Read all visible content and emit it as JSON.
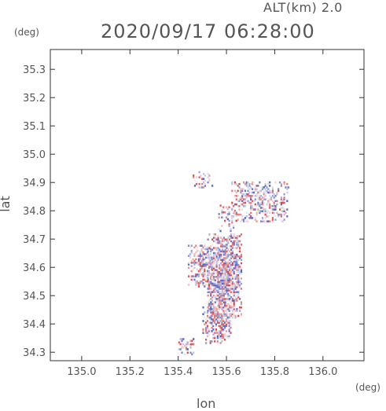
{
  "header": {
    "altitude_label": "ALT(km)  2.0",
    "timestamp": "2020/09/17 06:28:00"
  },
  "axes": {
    "y_unit": "(deg)",
    "x_unit": "(deg)",
    "x_label": "lon",
    "y_label": "lat"
  },
  "chart_data": {
    "type": "heatmap",
    "title": "2020/09/17 06:28:00",
    "subtitle": "ALT(km)  2.0",
    "xlabel": "lon",
    "ylabel": "lat",
    "x_unit": "(deg)",
    "y_unit": "(deg)",
    "xlim": [
      134.87,
      136.17
    ],
    "ylim": [
      34.27,
      35.37
    ],
    "x_ticks": [
      135.0,
      135.2,
      135.4,
      135.6,
      135.8,
      136.0
    ],
    "x_tick_labels": [
      "135.0",
      "135.2",
      "135.4",
      "135.6",
      "135.8",
      "136.0"
    ],
    "y_ticks": [
      34.3,
      34.4,
      34.5,
      34.6,
      34.7,
      34.8,
      34.9,
      35.0,
      35.1,
      35.2,
      35.3
    ],
    "y_tick_labels": [
      "34.3",
      "34.4",
      "34.5",
      "34.6",
      "34.7",
      "34.8",
      "34.9",
      "35.0",
      "35.1",
      "35.2",
      "35.3"
    ],
    "grid": false,
    "colormap": {
      "negative": "#3b4cc0",
      "neutral": "#f2f2f2",
      "positive": "#d62f2f"
    },
    "clusters": [
      {
        "lon": [
          135.52,
          135.66
        ],
        "lat": [
          34.42,
          34.72
        ],
        "density": 0.8
      },
      {
        "lon": [
          135.5,
          135.62
        ],
        "lat": [
          34.33,
          34.47
        ],
        "density": 0.55
      },
      {
        "lon": [
          135.44,
          135.54
        ],
        "lat": [
          34.53,
          34.68
        ],
        "density": 0.5
      },
      {
        "lon": [
          135.62,
          135.86
        ],
        "lat": [
          34.76,
          34.9
        ],
        "density": 0.45
      },
      {
        "lon": [
          135.46,
          135.54
        ],
        "lat": [
          34.88,
          34.94
        ],
        "density": 0.35
      },
      {
        "lon": [
          135.4,
          135.47
        ],
        "lat": [
          34.29,
          34.35
        ],
        "density": 0.45
      },
      {
        "lon": [
          135.56,
          135.64
        ],
        "lat": [
          34.72,
          34.82
        ],
        "density": 0.25
      }
    ]
  }
}
